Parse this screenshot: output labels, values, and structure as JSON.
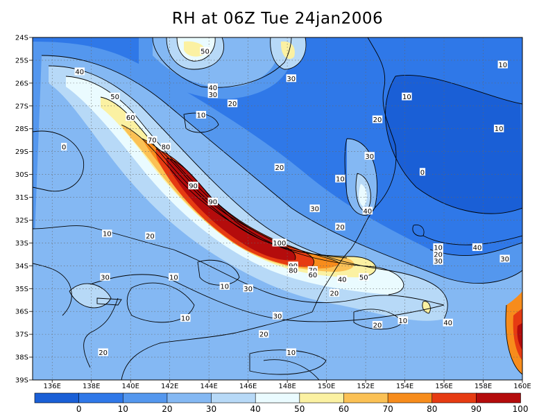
{
  "title": "RH at 06Z Tue 24jan2006",
  "map": {
    "lat_labels": [
      "24S",
      "25S",
      "26S",
      "27S",
      "28S",
      "29S",
      "30S",
      "31S",
      "32S",
      "33S",
      "34S",
      "35S",
      "36S",
      "37S",
      "38S",
      "39S"
    ],
    "lon_labels": [
      "136E",
      "138E",
      "140E",
      "142E",
      "144E",
      "146E",
      "148E",
      "150E",
      "152E",
      "154E",
      "156E",
      "158E",
      "160E"
    ],
    "lon_range": [
      135,
      160
    ],
    "lat_range": [
      -24,
      -39
    ],
    "grid": true
  },
  "colorbar": {
    "labels": [
      "0",
      "10",
      "20",
      "30",
      "40",
      "50",
      "60",
      "70",
      "80",
      "90",
      "100"
    ],
    "colors": [
      "#1a5fd6",
      "#2f78e8",
      "#5497ee",
      "#84b8f3",
      "#b7d9f7",
      "#eafbff",
      "#fbf1a2",
      "#fbc155",
      "#f78c1c",
      "#e63b12",
      "#b40c0c"
    ]
  },
  "contour_labels": [
    {
      "text": "50",
      "lon": 143.8,
      "lat": -24.6
    },
    {
      "text": "30",
      "lon": 148.2,
      "lat": -25.8
    },
    {
      "text": "40",
      "lon": 144.2,
      "lat": -26.2
    },
    {
      "text": "30",
      "lon": 144.2,
      "lat": -26.5
    },
    {
      "text": "20",
      "lon": 145.2,
      "lat": -26.9
    },
    {
      "text": "40",
      "lon": 137.4,
      "lat": -25.5
    },
    {
      "text": "50",
      "lon": 139.2,
      "lat": -26.6
    },
    {
      "text": "60",
      "lon": 140.0,
      "lat": -27.5
    },
    {
      "text": "10",
      "lon": 143.6,
      "lat": -27.4
    },
    {
      "text": "70",
      "lon": 141.1,
      "lat": -28.5
    },
    {
      "text": "80",
      "lon": 141.8,
      "lat": -28.8
    },
    {
      "text": "0",
      "lon": 136.6,
      "lat": -28.8
    },
    {
      "text": "20",
      "lon": 147.6,
      "lat": -29.7
    },
    {
      "text": "90",
      "lon": 143.2,
      "lat": -30.5
    },
    {
      "text": "10",
      "lon": 150.7,
      "lat": -30.2
    },
    {
      "text": "90",
      "lon": 144.2,
      "lat": -31.2
    },
    {
      "text": "30",
      "lon": 149.4,
      "lat": -31.5
    },
    {
      "text": "20",
      "lon": 150.7,
      "lat": -32.3
    },
    {
      "text": "100",
      "lon": 147.6,
      "lat": -33.0
    },
    {
      "text": "90",
      "lon": 148.3,
      "lat": -34.0
    },
    {
      "text": "80",
      "lon": 148.3,
      "lat": -34.2
    },
    {
      "text": "70",
      "lon": 149.3,
      "lat": -34.2
    },
    {
      "text": "60",
      "lon": 149.3,
      "lat": -34.4
    },
    {
      "text": "50",
      "lon": 151.9,
      "lat": -34.5
    },
    {
      "text": "40",
      "lon": 150.8,
      "lat": -34.6
    },
    {
      "text": "30",
      "lon": 146.0,
      "lat": -35.0
    },
    {
      "text": "20",
      "lon": 150.4,
      "lat": -35.2
    },
    {
      "text": "10",
      "lon": 138.8,
      "lat": -32.6
    },
    {
      "text": "20",
      "lon": 141.0,
      "lat": -32.7
    },
    {
      "text": "30",
      "lon": 138.7,
      "lat": -34.5
    },
    {
      "text": "10",
      "lon": 142.2,
      "lat": -34.5
    },
    {
      "text": "10",
      "lon": 144.8,
      "lat": -34.9
    },
    {
      "text": "10",
      "lon": 142.8,
      "lat": -36.3
    },
    {
      "text": "30",
      "lon": 147.5,
      "lat": -36.2
    },
    {
      "text": "20",
      "lon": 146.8,
      "lat": -37.0
    },
    {
      "text": "20",
      "lon": 152.6,
      "lat": -36.6
    },
    {
      "text": "10",
      "lon": 153.9,
      "lat": -36.4
    },
    {
      "text": "10",
      "lon": 148.2,
      "lat": -37.8
    },
    {
      "text": "20",
      "lon": 138.6,
      "lat": -37.8
    },
    {
      "text": "10",
      "lon": 159.0,
      "lat": -25.2
    },
    {
      "text": "10",
      "lon": 154.1,
      "lat": -26.6
    },
    {
      "text": "20",
      "lon": 152.6,
      "lat": -27.6
    },
    {
      "text": "10",
      "lon": 158.8,
      "lat": -28.0
    },
    {
      "text": "30",
      "lon": 152.2,
      "lat": -29.2
    },
    {
      "text": "0",
      "lon": 154.9,
      "lat": -29.9
    },
    {
      "text": "40",
      "lon": 152.1,
      "lat": -31.6
    },
    {
      "text": "10",
      "lon": 155.7,
      "lat": -33.2
    },
    {
      "text": "20",
      "lon": 155.7,
      "lat": -33.5
    },
    {
      "text": "30",
      "lon": 155.7,
      "lat": -33.8
    },
    {
      "text": "40",
      "lon": 157.7,
      "lat": -33.2
    },
    {
      "text": "30",
      "lon": 159.1,
      "lat": -33.7
    },
    {
      "text": "40",
      "lon": 156.2,
      "lat": -36.5
    }
  ]
}
